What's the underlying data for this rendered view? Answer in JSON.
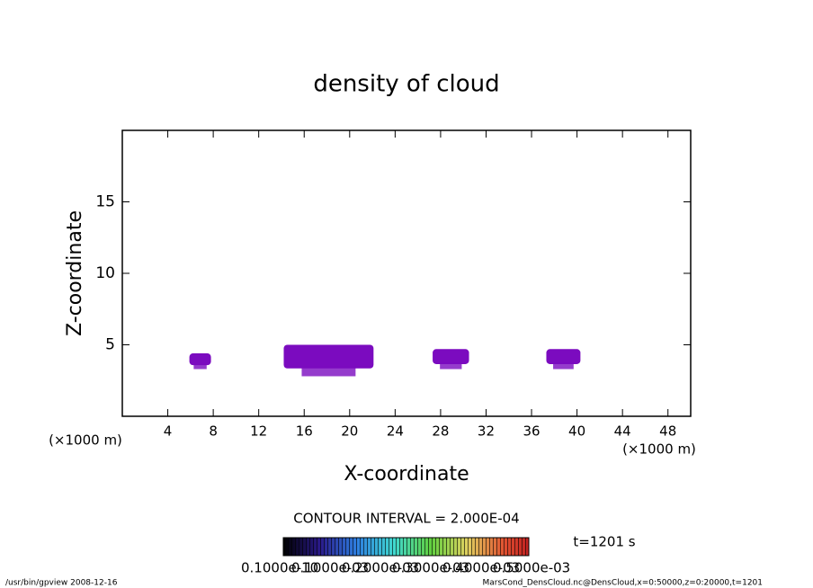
{
  "chart_data": {
    "type": "contour",
    "title": "density of cloud",
    "x_label": "X-coordinate",
    "y_label": "Z-coordinate",
    "x_unit": "(×1000 m)",
    "xlim": [
      0,
      50
    ],
    "xticks": [
      4,
      8,
      12,
      16,
      20,
      24,
      28,
      32,
      36,
      40,
      44,
      48
    ],
    "ylim": [
      0,
      20
    ],
    "yticks": [
      5,
      10,
      15
    ],
    "color": "#7b0bbf",
    "regions": [
      {
        "x": [
          5.9,
          7.8
        ],
        "z": [
          3.3,
          4.4
        ]
      },
      {
        "x": [
          14.2,
          22.1
        ],
        "z": [
          2.8,
          5.0
        ]
      },
      {
        "x": [
          27.3,
          30.5
        ],
        "z": [
          3.3,
          4.7
        ]
      },
      {
        "x": [
          37.3,
          40.3
        ],
        "z": [
          3.3,
          4.7
        ]
      }
    ],
    "contour_interval": "CONTOUR INTERVAL = 2.000E-04",
    "time_label": "t=1201 s",
    "colorbar_labels": [
      "0.1000e-10",
      "0.1000e-03",
      "0.2000e-03",
      "0.3000e-03",
      "0.4000e-03",
      "0.5000e-03"
    ],
    "footer_left": "/usr/bin/gpview   2008-12-16",
    "footer_right": "MarsCond_DensCloud.nc@DensCloud,x=0:50000,z=0:20000,t=1201"
  }
}
